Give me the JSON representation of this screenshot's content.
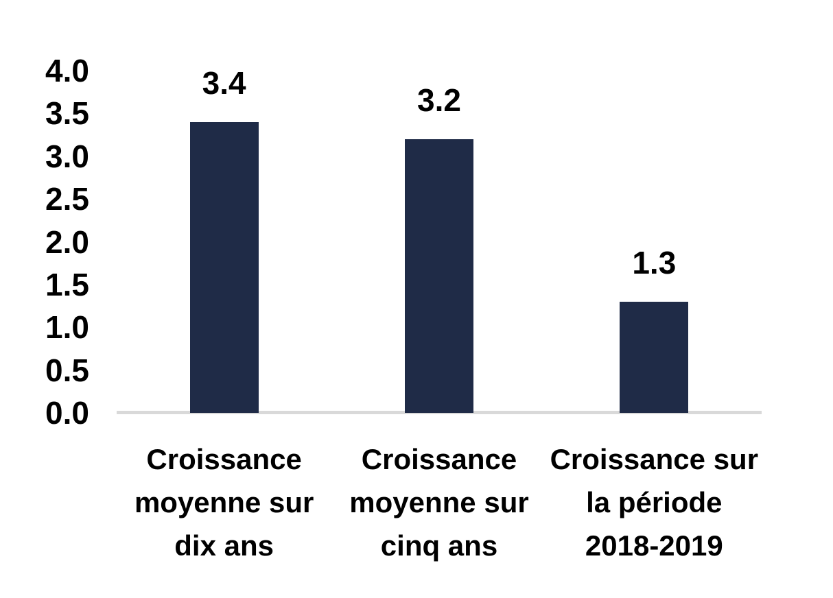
{
  "chart_data": {
    "type": "bar",
    "title": "",
    "categories": [
      "Croissance\nmoyenne sur\ndix ans",
      "Croissance\nmoyenne sur\ncinq ans",
      "Croissance sur\nla période\n2018-2019"
    ],
    "values": [
      3.4,
      3.2,
      1.3
    ],
    "data_labels": [
      "3.4",
      "3.2",
      "1.3"
    ],
    "y_ticks": [
      "4.0",
      "3.5",
      "3.0",
      "2.5",
      "2.0",
      "1.5",
      "1.0",
      "0.5",
      "0.0"
    ],
    "ylim": [
      0.0,
      4.0
    ],
    "ylabel": "",
    "xlabel": "",
    "grid": false,
    "legend": false,
    "colors": {
      "bar_fill": "#1F2B47",
      "axis_line": "#D9D9D9",
      "text": "#000000",
      "background": "#FFFFFF"
    }
  }
}
